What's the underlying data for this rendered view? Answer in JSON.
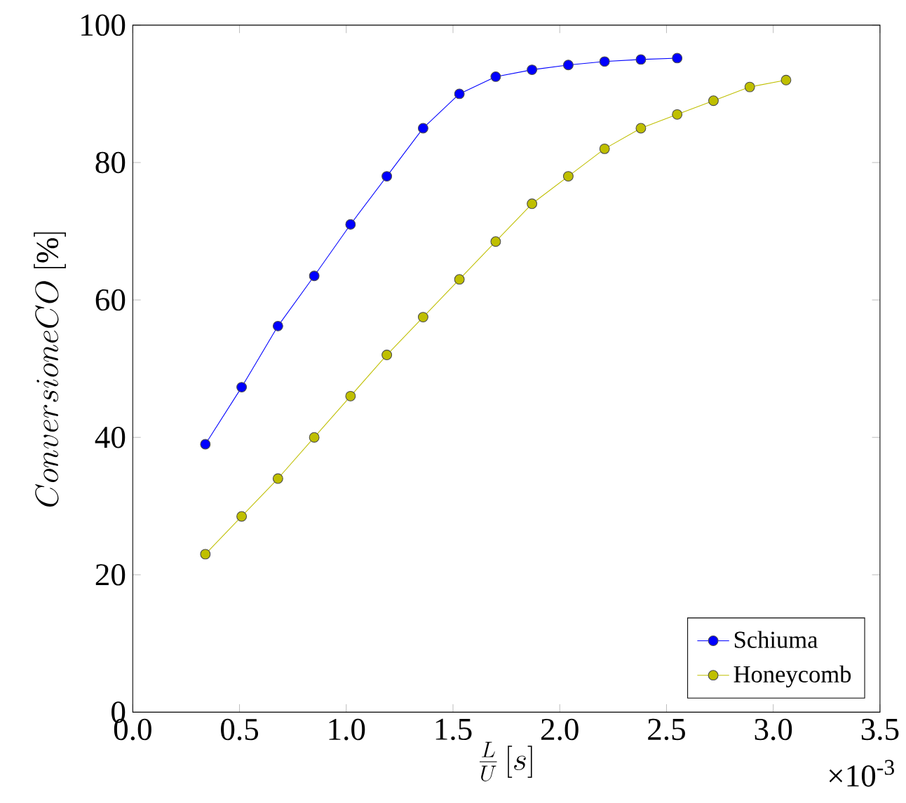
{
  "chart_data": {
    "type": "line",
    "xlabel": "\\frac{L}{U}\\,[s]",
    "ylabel": "ConversioneCO\\ [\\%]",
    "annotations": [
      "×10$^{-3}$"
    ],
    "xlim": [
      0,
      3.5
    ],
    "ylim": [
      0,
      100
    ],
    "xticks": [
      {
        "value": 0,
        "label": "0.0"
      },
      0.5,
      {
        "value": 1,
        "label": "1.0"
      },
      1.5,
      {
        "value": 2,
        "label": "2.0"
      },
      2.5,
      {
        "value": 3,
        "label": "3.0"
      },
      3.5
    ],
    "yticks": [
      0,
      20,
      40,
      60,
      80,
      100
    ],
    "legend": "bottom right",
    "marker": "circle",
    "line_style": "solid",
    "grid": false,
    "series": [
      {
        "name": "Schiuma",
        "color": "#0000ff",
        "x": [
          0.34,
          0.51,
          0.68,
          0.85,
          1.02,
          1.19,
          1.36,
          1.53,
          1.7,
          1.87,
          2.04,
          2.21,
          2.38,
          2.55
        ],
        "values": [
          39,
          47.3,
          56.2,
          63.5,
          71,
          78,
          85,
          90,
          92.5,
          93.5,
          94.2,
          94.7,
          95,
          95.2
        ]
      },
      {
        "name": "Honeycomb",
        "color": "#bfbf00",
        "x": [
          0.34,
          0.51,
          0.68,
          0.85,
          1.02,
          1.19,
          1.36,
          1.53,
          1.7,
          1.87,
          2.04,
          2.21,
          2.38,
          2.55,
          2.72,
          2.89,
          3.06
        ],
        "values": [
          23,
          28.5,
          34,
          40,
          46,
          52,
          57.5,
          63,
          68.5,
          74,
          78,
          82,
          85,
          87,
          89,
          91,
          92
        ]
      }
    ]
  }
}
